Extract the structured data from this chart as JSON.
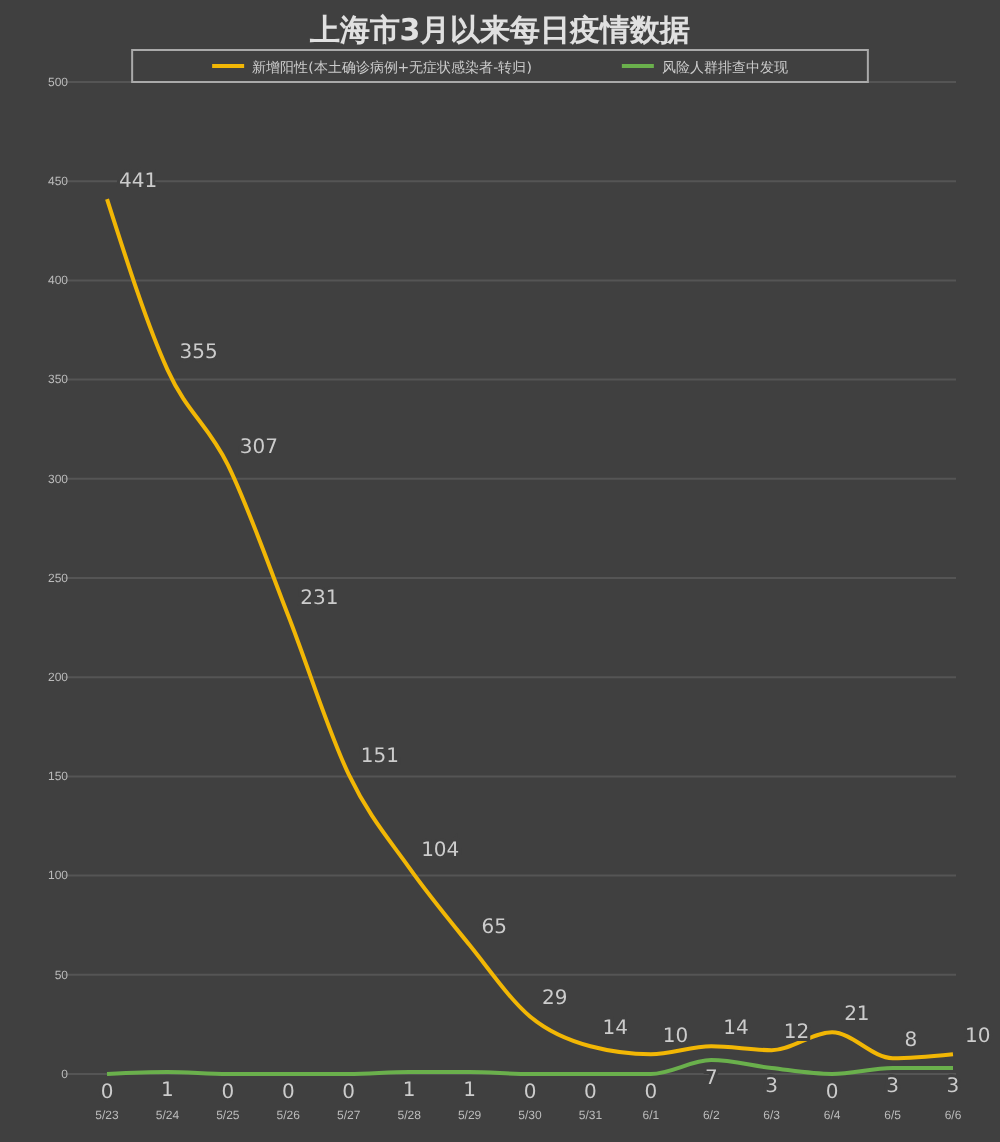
{
  "chart_data": {
    "type": "line",
    "title": "上海市3月以来每日疫情数据",
    "categories": [
      "5/23",
      "5/24",
      "5/25",
      "5/26",
      "5/27",
      "5/28",
      "5/29",
      "5/30",
      "5/31",
      "6/1",
      "6/2",
      "6/3",
      "6/4",
      "6/5",
      "6/6"
    ],
    "series": [
      {
        "name": "新增阳性(本土确诊病例+无症状感染者-转归)",
        "color": "#f2b705",
        "values": [
          441,
          355,
          307,
          231,
          151,
          104,
          65,
          29,
          14,
          10,
          14,
          12,
          21,
          8,
          10
        ]
      },
      {
        "name": "风险人群排查中发现",
        "color": "#6ab04c",
        "values": [
          0,
          1,
          0,
          0,
          0,
          1,
          1,
          0,
          0,
          0,
          7,
          3,
          0,
          3,
          3
        ]
      }
    ],
    "ylim": [
      0,
      500
    ],
    "yticks": [
      0,
      50,
      100,
      150,
      200,
      250,
      300,
      350,
      400,
      450,
      500
    ],
    "grid": "y",
    "legend": "top",
    "data_labels": true,
    "marker": "none",
    "line_style": "solid"
  }
}
